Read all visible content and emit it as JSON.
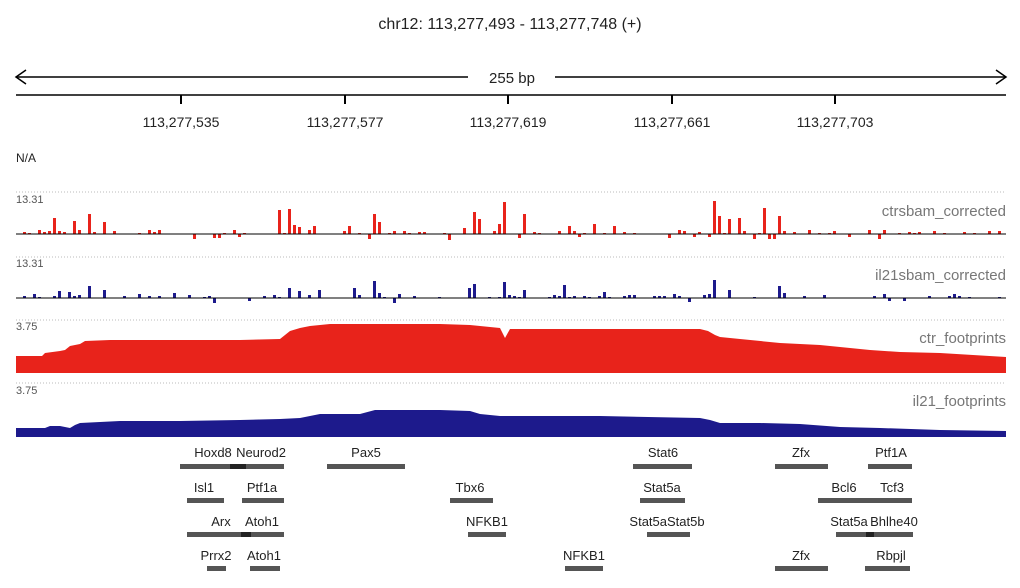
{
  "locus": "chr12: 113,277,493 - 113,277,748 (+)",
  "ruler": {
    "span_label": "255 bp",
    "ticks": [
      "113,277,535",
      "113,277,577",
      "113,277,619",
      "113,277,661",
      "113,277,703"
    ]
  },
  "na_label": "N/A",
  "tracks": [
    {
      "name": "ctrsbam_corrected",
      "scale": "13.31",
      "color": "#e8231b",
      "type": "bar"
    },
    {
      "name": "il21sbam_corrected",
      "scale": "13.31",
      "color": "#1d1a8c",
      "type": "bar"
    },
    {
      "name": "ctr_footprints",
      "scale": "3.75",
      "color": "#e8231b",
      "type": "area"
    },
    {
      "name": "il21_footprints",
      "scale": "3.75",
      "color": "#1d1a8c",
      "type": "area"
    }
  ],
  "motifs": [
    {
      "label": "Hoxd8"
    },
    {
      "label": "Neurod2"
    },
    {
      "label": "Pax5"
    },
    {
      "label": "Stat6"
    },
    {
      "label": "Zfx"
    },
    {
      "label": "Ptf1A"
    },
    {
      "label": "Isl1"
    },
    {
      "label": "Ptf1a"
    },
    {
      "label": "Tbx6"
    },
    {
      "label": "Stat5a"
    },
    {
      "label": "Bcl6"
    },
    {
      "label": "Tcf3"
    },
    {
      "label": "Arx"
    },
    {
      "label": "Atoh1"
    },
    {
      "label": "NFKB1"
    },
    {
      "label": "Stat5aStat5b"
    },
    {
      "label": "Stat5a"
    },
    {
      "label": "Bhlhe40"
    },
    {
      "label": "Prrx2"
    },
    {
      "label": "Atoh1"
    },
    {
      "label": "NFKB1"
    },
    {
      "label": "Zfx"
    },
    {
      "label": "Rbpjl"
    }
  ],
  "colors": {
    "motif_bar": "#555555",
    "motif_overlap": "#222222",
    "axis": "#000000"
  }
}
